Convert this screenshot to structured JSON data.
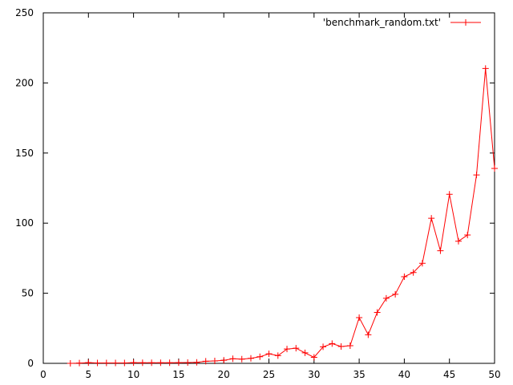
{
  "chart_data": {
    "type": "line",
    "title": "",
    "xlabel": "",
    "ylabel": "",
    "xlim": [
      0,
      50
    ],
    "ylim": [
      0,
      250
    ],
    "x_ticks": [
      0,
      5,
      10,
      15,
      20,
      25,
      30,
      35,
      40,
      45,
      50
    ],
    "y_ticks": [
      0,
      50,
      100,
      150,
      200,
      250
    ],
    "grid": false,
    "legend_position": "top-right",
    "series": [
      {
        "name": "'benchmark_random.txt'",
        "color": "#ff0000",
        "marker": "plus",
        "x": [
          3,
          4,
          5,
          6,
          7,
          8,
          9,
          10,
          11,
          12,
          13,
          14,
          15,
          16,
          17,
          18,
          19,
          20,
          21,
          22,
          23,
          24,
          25,
          26,
          27,
          28,
          29,
          30,
          31,
          32,
          33,
          34,
          35,
          36,
          37,
          38,
          39,
          40,
          41,
          42,
          43,
          44,
          45,
          46,
          47,
          48,
          49,
          50
        ],
        "y": [
          0,
          0.2,
          0.5,
          0.3,
          0.3,
          0.3,
          0.3,
          0.5,
          0.4,
          0.4,
          0.4,
          0.4,
          0.5,
          0.6,
          0.7,
          1.5,
          1.7,
          2.2,
          3.3,
          3.0,
          3.6,
          4.7,
          6.8,
          5.5,
          10.2,
          10.8,
          7.5,
          4.3,
          11.8,
          14.1,
          12.0,
          12.6,
          32.6,
          20.4,
          36.3,
          46.4,
          49.3,
          61.8,
          64.8,
          71.4,
          103.5,
          80.3,
          120.6,
          87.1,
          91.5,
          134.4,
          210.3,
          139.0
        ]
      }
    ]
  }
}
